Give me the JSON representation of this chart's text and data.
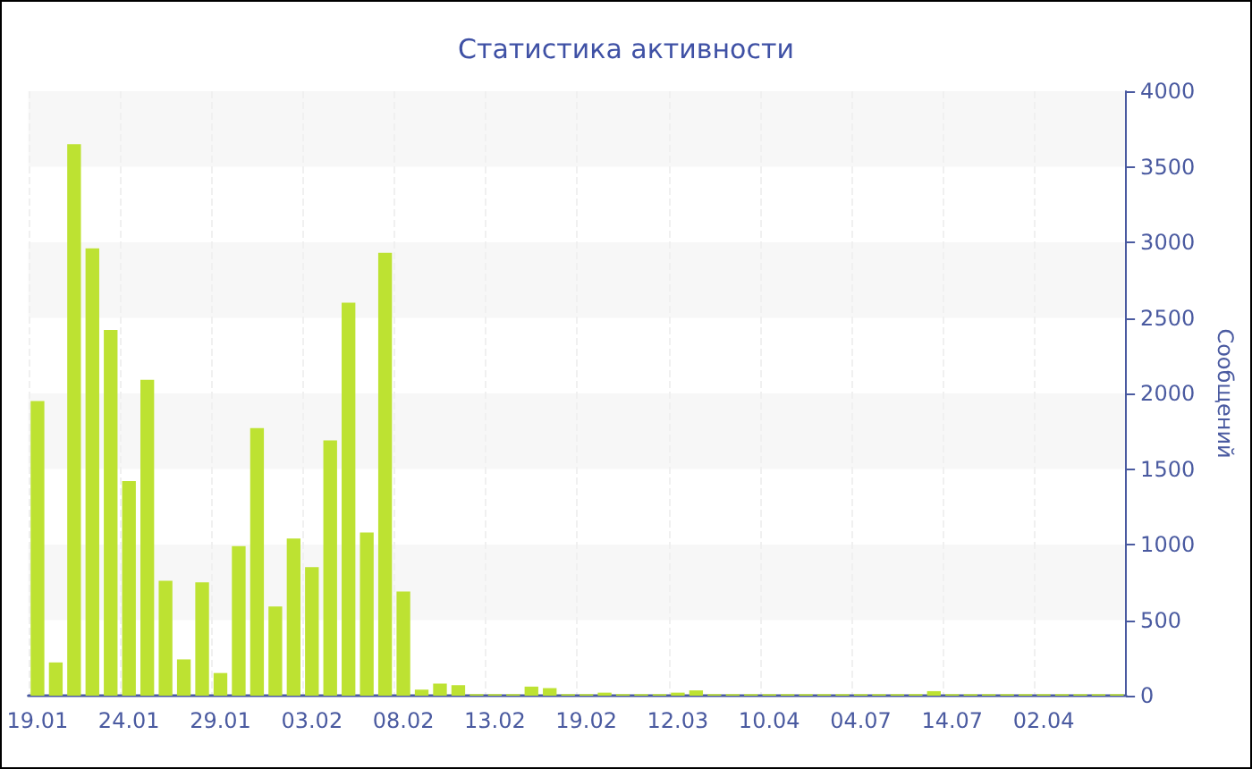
{
  "chart_data": {
    "type": "bar",
    "title": "Статистика активности",
    "ylabel": "Сообщений",
    "categories": [
      "19.01",
      null,
      null,
      null,
      null,
      "24.01",
      null,
      null,
      null,
      null,
      "29.01",
      null,
      null,
      null,
      null,
      "03.02",
      null,
      null,
      null,
      null,
      "08.02",
      null,
      null,
      null,
      null,
      "13.02",
      null,
      null,
      null,
      null,
      "19.02",
      null,
      null,
      null,
      null,
      "12.03",
      null,
      null,
      null,
      null,
      "10.04",
      null,
      null,
      null,
      null,
      "04.07",
      null,
      null,
      null,
      null,
      "14.07",
      null,
      null,
      null,
      null,
      "02.04",
      null,
      null,
      null,
      null
    ],
    "values": [
      1950,
      220,
      3650,
      2960,
      2420,
      1420,
      2090,
      760,
      240,
      750,
      150,
      990,
      1770,
      590,
      1040,
      850,
      1690,
      2600,
      1080,
      2930,
      690,
      40,
      80,
      70,
      10,
      10,
      10,
      60,
      50,
      10,
      10,
      20,
      10,
      10,
      10,
      20,
      35,
      10,
      10,
      10,
      10,
      10,
      10,
      10,
      10,
      10,
      10,
      10,
      10,
      30,
      10,
      10,
      10,
      10,
      10,
      10,
      10,
      10,
      10,
      10
    ],
    "color": "#bde232",
    "ylim": [
      0,
      4000
    ],
    "yticks": [
      0,
      500,
      1000,
      1500,
      2000,
      2500,
      3000,
      3500,
      4000
    ],
    "grid": "x"
  }
}
